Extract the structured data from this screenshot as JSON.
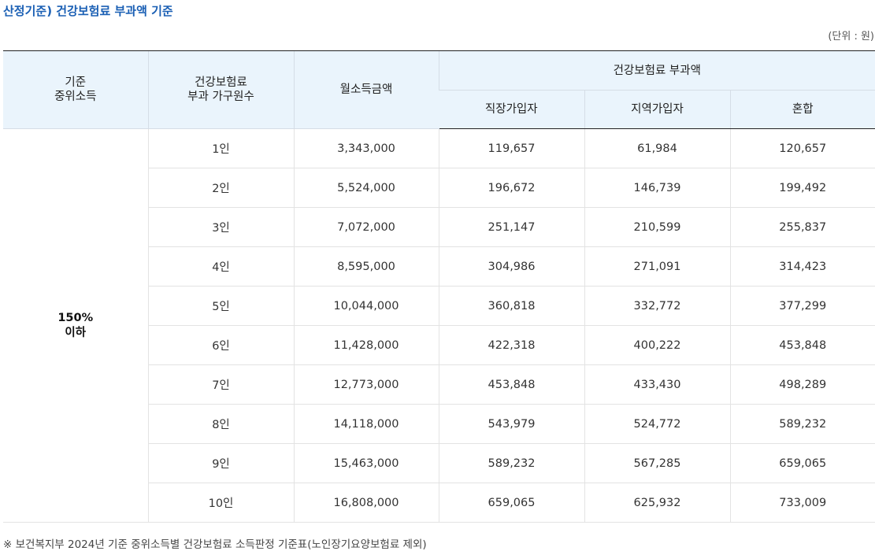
{
  "title": "산정기준) 건강보험료 부과액 기준",
  "unit": "(단위 : 원)",
  "header": {
    "median_income_line1": "기준",
    "median_income_line2": "중위소득",
    "household_line1": "건강보험료",
    "household_line2": "부과 가구원수",
    "monthly_income": "월소득금액",
    "premium_group": "건강보험료 부과액",
    "employee": "직장가입자",
    "regional": "지역가입자",
    "mixed": "혼합"
  },
  "group": {
    "line1": "150%",
    "line2": "이하"
  },
  "rows": [
    {
      "size": "1인",
      "income": "3,343,000",
      "employee": "119,657",
      "regional": "61,984",
      "mixed": "120,657"
    },
    {
      "size": "2인",
      "income": "5,524,000",
      "employee": "196,672",
      "regional": "146,739",
      "mixed": "199,492"
    },
    {
      "size": "3인",
      "income": "7,072,000",
      "employee": "251,147",
      "regional": "210,599",
      "mixed": "255,837"
    },
    {
      "size": "4인",
      "income": "8,595,000",
      "employee": "304,986",
      "regional": "271,091",
      "mixed": "314,423"
    },
    {
      "size": "5인",
      "income": "10,044,000",
      "employee": "360,818",
      "regional": "332,772",
      "mixed": "377,299"
    },
    {
      "size": "6인",
      "income": "11,428,000",
      "employee": "422,318",
      "regional": "400,222",
      "mixed": "453,848"
    },
    {
      "size": "7인",
      "income": "12,773,000",
      "employee": "453,848",
      "regional": "433,430",
      "mixed": "498,289"
    },
    {
      "size": "8인",
      "income": "14,118,000",
      "employee": "543,979",
      "regional": "524,772",
      "mixed": "589,232"
    },
    {
      "size": "9인",
      "income": "15,463,000",
      "employee": "589,232",
      "regional": "567,285",
      "mixed": "659,065"
    },
    {
      "size": "10인",
      "income": "16,808,000",
      "employee": "659,065",
      "regional": "625,932",
      "mixed": "733,009"
    }
  ],
  "footnote": "※ 보건복지부 2024년 기준 중위소득별 건강보험료 소득판정 기준표(노인장기요양보험료 제외)"
}
